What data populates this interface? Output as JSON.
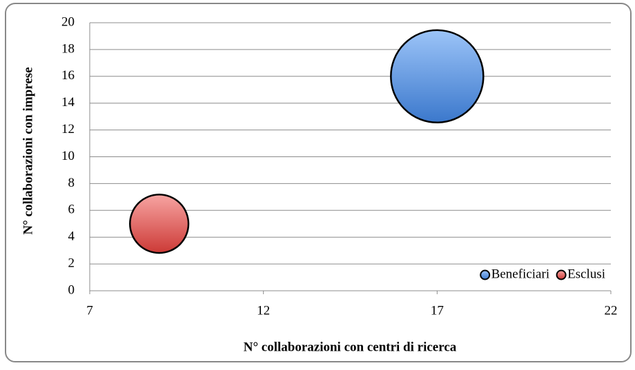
{
  "chart_data": {
    "type": "bubble",
    "xlabel": "N° collaborazioni con centri di ricerca",
    "ylabel": "N° collaborazioni con imprese",
    "xlim": [
      7,
      22
    ],
    "xticks": [
      7,
      12,
      17,
      22
    ],
    "ylim": [
      0,
      20
    ],
    "yticks": [
      0,
      2,
      4,
      6,
      8,
      10,
      12,
      14,
      16,
      18,
      20
    ],
    "grid": true,
    "legend": "lower right",
    "series": [
      {
        "name": "Beneficiari",
        "color": "#4a86d8",
        "x": [
          17
        ],
        "y": [
          16
        ],
        "sizes": [
          25
        ]
      },
      {
        "name": "Esclusi",
        "color": "#d9504c",
        "x": [
          9
        ],
        "y": [
          5
        ],
        "sizes": [
          10
        ]
      }
    ]
  }
}
